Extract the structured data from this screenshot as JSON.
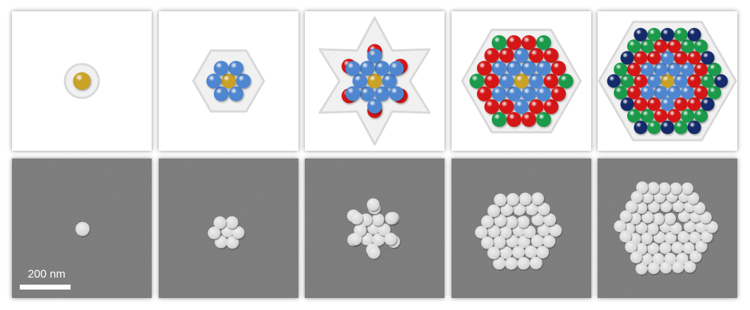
{
  "figure": {
    "scale_bar_label": "200 nm"
  },
  "colors": {
    "core": "#c9a227",
    "shell1": "#4f86d0",
    "shell2_red": "#d51616",
    "shell3_green": "#1a9a4a",
    "shell4_navy": "#142a6a",
    "sem_background": "#747474",
    "sem_particle": "#d6d6d6"
  },
  "panels": [
    {
      "stage": 1,
      "shell_outline": "circle",
      "shells": [
        "core"
      ]
    },
    {
      "stage": 2,
      "shell_outline": "hexagon",
      "shells": [
        "core",
        "shell1"
      ]
    },
    {
      "stage": 3,
      "shell_outline": "hexagram",
      "shells": [
        "core",
        "shell1",
        "shell2_red"
      ]
    },
    {
      "stage": 4,
      "shell_outline": "hexagon",
      "shells": [
        "core",
        "shell1",
        "shell2_red",
        "shell3_green"
      ]
    },
    {
      "stage": 5,
      "shell_outline": "hexagon",
      "shells": [
        "core",
        "shell1",
        "shell2_red",
        "shell3_green",
        "shell4_navy"
      ]
    }
  ]
}
